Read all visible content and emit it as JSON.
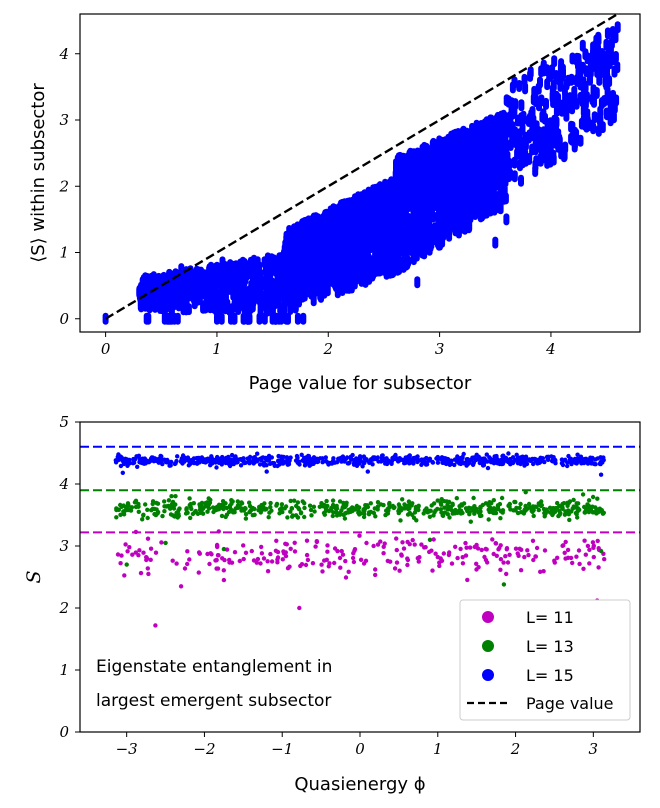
{
  "chart_data": [
    {
      "type": "scatter",
      "title": "",
      "xlabel": "Page value for subsector",
      "ylabel": "⟨S⟩ within subsector",
      "xlim": [
        -0.23,
        4.8
      ],
      "ylim": [
        -0.2,
        4.6
      ],
      "xticks": [
        "0",
        "1",
        "2",
        "3",
        "4"
      ],
      "yticks": [
        "0",
        "1",
        "2",
        "3",
        "4"
      ],
      "grid": false,
      "reference_line": {
        "name": "Page value",
        "style": "dashed",
        "color": "#000000",
        "x": [
          0,
          4.6
        ],
        "y": [
          0,
          4.6
        ]
      },
      "series": [
        {
          "color": "#0000ff",
          "bands": [
            {
              "x": [
                0.3,
                0.7
              ],
              "y_low": [
                0.0,
                0.0
              ],
              "y_high": [
                0.0,
                0.0
              ],
              "n": 10
            },
            {
              "x": [
                0.9,
                1.8
              ],
              "y_low": [
                0.0,
                0.0
              ],
              "y_high": [
                0.0,
                0.0
              ],
              "n": 25
            },
            {
              "x": [
                0.3,
                1.6
              ],
              "y_low": [
                0.15,
                0.1
              ],
              "y_high": [
                0.6,
                0.95
              ],
              "n": 600
            },
            {
              "x": [
                1.6,
                2.6
              ],
              "y_low": [
                0.1,
                0.7
              ],
              "y_high": [
                1.3,
                2.1
              ],
              "n": 1300
            },
            {
              "x": [
                2.6,
                3.6
              ],
              "y_low": [
                0.7,
                1.7
              ],
              "y_high": [
                2.4,
                3.1
              ],
              "n": 1300
            },
            {
              "x": [
                3.6,
                4.6
              ],
              "y_low": [
                1.8,
                3.0
              ],
              "y_high": [
                3.55,
                4.4
              ],
              "n": 300
            }
          ],
          "points": [
            [
              0.0,
              0.0
            ],
            [
              0.48,
              0.45
            ],
            [
              0.68,
              0.75
            ],
            [
              1.05,
              0.85
            ],
            [
              1.78,
              0.7
            ],
            [
              2.8,
              0.55
            ],
            [
              3.5,
              1.15
            ],
            [
              3.6,
              1.5
            ],
            [
              4.2,
              2.8
            ],
            [
              4.32,
              2.9
            ],
            [
              4.58,
              4.25
            ],
            [
              4.6,
              4.4
            ]
          ]
        }
      ]
    },
    {
      "type": "scatter",
      "title": "",
      "xlabel": "Quasienergy ϕ",
      "ylabel": "S",
      "xlim": [
        -3.6,
        3.6
      ],
      "ylim": [
        0,
        5
      ],
      "xticks": [
        "−3",
        "−2",
        "−1",
        "0",
        "1",
        "2",
        "3"
      ],
      "yticks": [
        "0",
        "1",
        "2",
        "3",
        "4",
        "5"
      ],
      "grid": false,
      "annotation": [
        "Eigenstate entanglement in",
        "largest emergent subsector"
      ],
      "legend": {
        "position": "bottom-right",
        "entries": [
          "L= 11",
          "L= 13",
          "L= 15",
          "Page value"
        ]
      },
      "series": [
        {
          "name": "L= 11",
          "color": "#c000c0",
          "page_value": 3.22,
          "x_range": [
            -3.14,
            3.14
          ],
          "count": 260,
          "mean": 2.85,
          "spread": 0.15,
          "outliers": [
            [
              -2.63,
              1.72
            ],
            [
              -0.78,
              2.0
            ],
            [
              -1.75,
              2.45
            ],
            [
              3.05,
              2.12
            ],
            [
              1.88,
              2.55
            ],
            [
              -2.3,
              2.35
            ]
          ]
        },
        {
          "name": "L= 13",
          "color": "#008000",
          "page_value": 3.9,
          "x_range": [
            -3.14,
            3.14
          ],
          "count": 600,
          "mean": 3.6,
          "spread": 0.07,
          "outliers": [
            [
              -3.0,
              2.7
            ],
            [
              1.85,
              2.38
            ],
            [
              -2.5,
              3.05
            ],
            [
              0.9,
              3.1
            ],
            [
              3.1,
              2.92
            ],
            [
              -1.75,
              2.95
            ]
          ]
        },
        {
          "name": "L= 15",
          "color": "#0000ff",
          "page_value": 4.6,
          "x_range": [
            -3.14,
            3.14
          ],
          "count": 700,
          "mean": 4.38,
          "spread": 0.04,
          "outliers": [
            [
              -3.05,
              4.18
            ],
            [
              3.1,
              4.15
            ],
            [
              0.1,
              4.2
            ],
            [
              -1.2,
              4.2
            ]
          ]
        }
      ]
    }
  ]
}
